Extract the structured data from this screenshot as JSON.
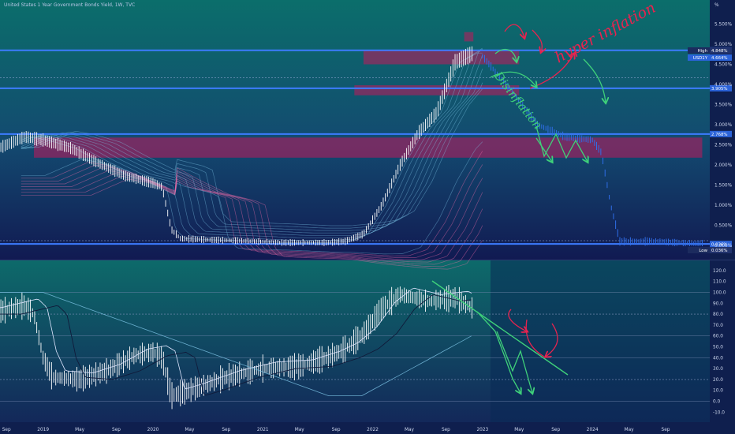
{
  "title": "United States 1 Year Government Bonds Yield, 1W, TVC",
  "currency_label": "%",
  "colors": {
    "background_top": "#0c6b6a",
    "background_bottom": "#10184f",
    "level_line": "#3d7cff",
    "zone": "#c2185b",
    "ema_ribbon": "#7fc7e8",
    "ema_ribbon_lower": "#ff6fae",
    "price_bars": "#ffffff",
    "projection": "#2f6ee8",
    "annotation_red": "#e8234f",
    "annotation_green": "#3fd17a"
  },
  "chart_data": [
    {
      "type": "ohlc",
      "panel": "price",
      "y_unit": "%",
      "ylim": [
        -0.1,
        5.9
      ],
      "y_ticks": [
        "5.500%",
        "5.000%",
        "4.500%",
        "4.000%",
        "3.500%",
        "3.000%",
        "2.500%",
        "2.000%",
        "1.500%",
        "1.000%",
        "0.500%",
        "0.000%"
      ],
      "x_ticks": [
        "Sep",
        "2019",
        "May",
        "Sep",
        "2020",
        "May",
        "Sep",
        "2021",
        "May",
        "Sep",
        "2022",
        "May",
        "Sep",
        "2023",
        "May",
        "Sep",
        "2024",
        "May",
        "Sep"
      ],
      "price_path": [
        [
          "2018-07",
          2.3
        ],
        [
          "2018-11",
          2.7
        ],
        [
          "2019-01",
          2.62
        ],
        [
          "2019-04",
          2.42
        ],
        [
          "2019-07",
          2.05
        ],
        [
          "2019-10",
          1.72
        ],
        [
          "2020-01",
          1.55
        ],
        [
          "2020-02",
          1.45
        ],
        [
          "2020-03",
          0.4
        ],
        [
          "2020-04",
          0.17
        ],
        [
          "2020-07",
          0.14
        ],
        [
          "2020-10",
          0.12
        ],
        [
          "2021-03",
          0.07
        ],
        [
          "2021-08",
          0.07
        ],
        [
          "2021-10",
          0.1
        ],
        [
          "2021-12",
          0.28
        ],
        [
          "2022-02",
          1.0
        ],
        [
          "2022-04",
          2.0
        ],
        [
          "2022-06",
          2.8
        ],
        [
          "2022-08",
          3.3
        ],
        [
          "2022-10",
          4.55
        ],
        [
          "2022-12",
          4.78
        ]
      ],
      "projection_path": [
        [
          "2023-01",
          4.7
        ],
        [
          "2023-05",
          3.6
        ],
        [
          "2023-07",
          3.0
        ],
        [
          "2023-10",
          2.7
        ],
        [
          "2024-01",
          2.62
        ],
        [
          "2024-02",
          2.3
        ],
        [
          "2024-03",
          1.0
        ],
        [
          "2024-04",
          0.1
        ],
        [
          "2024-08",
          0.1
        ],
        [
          "2025-01",
          0.03
        ]
      ],
      "levels": [
        {
          "value": 4.848,
          "label": "4.848%"
        },
        {
          "value": 3.905,
          "label": "3.905%"
        },
        {
          "value": 2.768,
          "label": "2.768%"
        },
        {
          "value": 0.036,
          "label": "0.036%"
        }
      ],
      "last_value_tags": [
        {
          "name": "High",
          "value_label": "4.848%"
        },
        {
          "name": "USD1Y",
          "value_label": "4.664%"
        },
        {
          "name": "Low",
          "value_label": "0.036%"
        }
      ],
      "zones": [
        {
          "from": "2022-11",
          "to": "2022-12",
          "low": 5.07,
          "high": 5.3
        },
        {
          "from": "2021-12",
          "to": "2023-05",
          "low": 4.5,
          "high": 4.85
        },
        {
          "from": "2021-11",
          "to": "2023-05",
          "low": 3.73,
          "high": 3.98
        },
        {
          "from": "2018-12",
          "to": "2025-01",
          "low": 2.18,
          "high": 2.68
        }
      ],
      "annotations": [
        {
          "text": "hyper inflation",
          "color": "red"
        },
        {
          "text": "Disinflation",
          "color": "green"
        }
      ]
    },
    {
      "type": "oscillator",
      "panel": "indicator",
      "ylim": [
        -10,
        125
      ],
      "y_ticks": [
        "120.0",
        "110.0",
        "100.0",
        "90.0",
        "80.0",
        "70.0",
        "60.0",
        "50.0",
        "40.0",
        "30.0",
        "20.0",
        "10.0",
        "0.0",
        "-10.0"
      ],
      "oscillator_path": [
        [
          "2018-07",
          80
        ],
        [
          "2018-11",
          88
        ],
        [
          "2018-12",
          80
        ],
        [
          "2019-01",
          40
        ],
        [
          "2019-02",
          22
        ],
        [
          "2019-05",
          20
        ],
        [
          "2019-08",
          28
        ],
        [
          "2019-11",
          42
        ],
        [
          "2020-01",
          45
        ],
        [
          "2020-02",
          40
        ],
        [
          "2020-03",
          5
        ],
        [
          "2020-05",
          10
        ],
        [
          "2020-09",
          22
        ],
        [
          "2021-01",
          30
        ],
        [
          "2021-05",
          32
        ],
        [
          "2021-08",
          40
        ],
        [
          "2021-10",
          48
        ],
        [
          "2021-12",
          62
        ],
        [
          "2022-02",
          85
        ],
        [
          "2022-04",
          98
        ],
        [
          "2022-07",
          92
        ],
        [
          "2022-10",
          95
        ],
        [
          "2022-12",
          85
        ]
      ],
      "oscillator_end": [
        "2022-12",
        85
      ]
    }
  ]
}
